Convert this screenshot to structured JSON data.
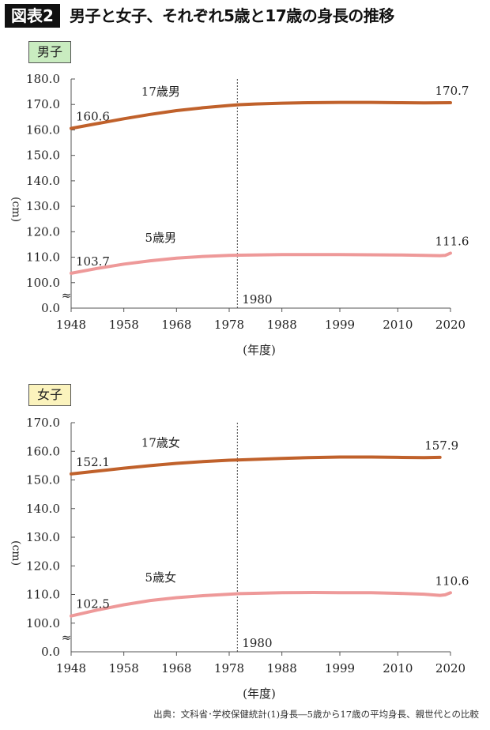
{
  "header": {
    "figure_label": "図表2",
    "title": "男子と女子、それぞれ5歳と17歳の身長の推移"
  },
  "panels": {
    "boys": {
      "badge": "男子"
    },
    "girls": {
      "badge": "女子"
    }
  },
  "source": "出典：文科省･学校保健統計(1)身長―5歳から17歳の平均身長、親世代との比較",
  "colors": {
    "age17": "#c0612b",
    "age5": "#ee9999",
    "axis": "#555555",
    "boys_badge_bg": "#c9ecc0",
    "girls_badge_bg": "#fbf3bd"
  },
  "chart_data": [
    {
      "type": "line",
      "title": "男子",
      "ylabel": "(cm)",
      "xlabel": "(年度)",
      "axis_break": "≈",
      "ylim": [
        90,
        180
      ],
      "y_ticks": [
        {
          "value": 0,
          "label": "0.0"
        },
        {
          "value": 100,
          "label": "100.0"
        },
        {
          "value": 110,
          "label": "110.0"
        },
        {
          "value": 120,
          "label": "120.0"
        },
        {
          "value": 130,
          "label": "130.0"
        },
        {
          "value": 140,
          "label": "140.0"
        },
        {
          "value": 150,
          "label": "150.0"
        },
        {
          "value": 160,
          "label": "160.0"
        },
        {
          "value": 170,
          "label": "170.0"
        },
        {
          "value": 180,
          "label": "180.0"
        }
      ],
      "xlim": [
        1948,
        2020
      ],
      "x_ticks": [
        1948,
        1958,
        1968,
        1978,
        1988,
        1999,
        2010,
        2020
      ],
      "reference_line": {
        "x": 1980,
        "label": "1980"
      },
      "series": [
        {
          "name": "17歳男",
          "color": "#c0612b",
          "x": [
            1948,
            1953,
            1958,
            1963,
            1968,
            1973,
            1978,
            1980,
            1983,
            1988,
            1993,
            1999,
            2005,
            2010,
            2015,
            2020
          ],
          "values": [
            160.6,
            162.5,
            164.4,
            166.1,
            167.6,
            168.7,
            169.6,
            169.9,
            170.2,
            170.5,
            170.7,
            170.8,
            170.8,
            170.7,
            170.6,
            170.7
          ],
          "start_label": "160.6",
          "end_label": "170.7"
        },
        {
          "name": "5歳男",
          "color": "#ee9999",
          "x": [
            1948,
            1953,
            1958,
            1963,
            1968,
            1973,
            1978,
            1980,
            1988,
            1999,
            2010,
            2015,
            2018,
            2019,
            2020
          ],
          "values": [
            103.7,
            105.6,
            107.3,
            108.6,
            109.6,
            110.3,
            110.7,
            110.8,
            111.0,
            111.0,
            110.9,
            110.7,
            110.6,
            110.7,
            111.6
          ],
          "start_label": "103.7",
          "end_label": "111.6"
        }
      ]
    },
    {
      "type": "line",
      "title": "女子",
      "ylabel": "(cm)",
      "xlabel": "(年度)",
      "axis_break": "≈",
      "ylim": [
        90,
        170
      ],
      "y_ticks": [
        {
          "value": 0,
          "label": "0.0"
        },
        {
          "value": 100,
          "label": "100.0"
        },
        {
          "value": 110,
          "label": "110.0"
        },
        {
          "value": 120,
          "label": "120.0"
        },
        {
          "value": 130,
          "label": "130.0"
        },
        {
          "value": 140,
          "label": "140.0"
        },
        {
          "value": 150,
          "label": "150.0"
        },
        {
          "value": 160,
          "label": "160.0"
        },
        {
          "value": 170,
          "label": "170.0"
        }
      ],
      "xlim": [
        1948,
        2020
      ],
      "x_ticks": [
        1948,
        1958,
        1968,
        1978,
        1988,
        1999,
        2010,
        2020
      ],
      "reference_line": {
        "x": 1980,
        "label": "1980"
      },
      "series": [
        {
          "name": "17歳女",
          "color": "#c0612b",
          "x": [
            1948,
            1953,
            1958,
            1963,
            1968,
            1973,
            1978,
            1980,
            1988,
            1993,
            1999,
            2005,
            2010,
            2015,
            2018
          ],
          "values": [
            152.1,
            153.1,
            154.1,
            155.0,
            155.8,
            156.4,
            156.9,
            157.0,
            157.5,
            157.8,
            158.0,
            158.0,
            157.9,
            157.8,
            157.9
          ],
          "start_label": "152.1",
          "end_label": "157.9"
        },
        {
          "name": "5歳女",
          "color": "#ee9999",
          "x": [
            1948,
            1953,
            1958,
            1963,
            1968,
            1973,
            1978,
            1980,
            1988,
            1994,
            1999,
            2005,
            2010,
            2015,
            2018,
            2019,
            2020
          ],
          "values": [
            102.5,
            104.6,
            106.4,
            107.9,
            108.9,
            109.6,
            110.1,
            110.3,
            110.6,
            110.7,
            110.6,
            110.6,
            110.4,
            110.1,
            109.7,
            109.9,
            110.6
          ],
          "start_label": "102.5",
          "end_label": "110.6"
        }
      ]
    }
  ]
}
